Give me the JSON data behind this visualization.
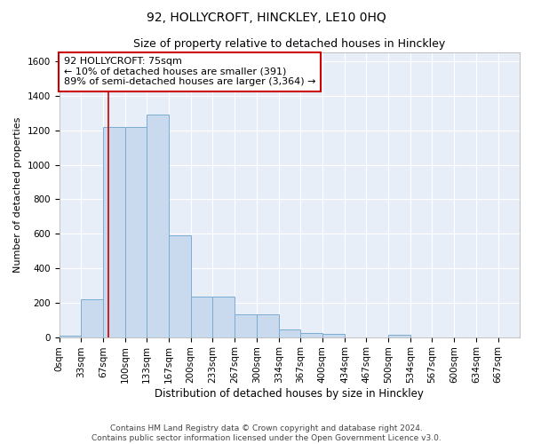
{
  "title1": "92, HOLLYCROFT, HINCKLEY, LE10 0HQ",
  "title2": "Size of property relative to detached houses in Hinckley",
  "xlabel": "Distribution of detached houses by size in Hinckley",
  "ylabel": "Number of detached properties",
  "bin_labels": [
    "0sqm",
    "33sqm",
    "67sqm",
    "100sqm",
    "133sqm",
    "167sqm",
    "200sqm",
    "233sqm",
    "267sqm",
    "300sqm",
    "334sqm",
    "367sqm",
    "400sqm",
    "434sqm",
    "467sqm",
    "500sqm",
    "534sqm",
    "567sqm",
    "600sqm",
    "634sqm",
    "667sqm"
  ],
  "bar_heights": [
    10,
    220,
    1220,
    1220,
    1290,
    590,
    235,
    235,
    130,
    130,
    45,
    25,
    20,
    0,
    0,
    15,
    0,
    0,
    0,
    0,
    0
  ],
  "bar_color": "#c9d9ee",
  "bar_edge_color": "#7aadd4",
  "red_line_x": 75,
  "bin_edges": [
    0,
    33,
    67,
    100,
    133,
    167,
    200,
    233,
    267,
    300,
    334,
    367,
    400,
    434,
    467,
    500,
    534,
    567,
    600,
    634,
    667,
    700
  ],
  "ylim": [
    0,
    1650
  ],
  "yticks": [
    0,
    200,
    400,
    600,
    800,
    1000,
    1200,
    1400,
    1600
  ],
  "annotation_line1": "92 HOLLYCROFT: 75sqm",
  "annotation_line2": "← 10% of detached houses are smaller (391)",
  "annotation_line3": "89% of semi-detached houses are larger (3,364) →",
  "annotation_box_color": "#ffffff",
  "annotation_box_edge_color": "#cc0000",
  "footer1": "Contains HM Land Registry data © Crown copyright and database right 2024.",
  "footer2": "Contains public sector information licensed under the Open Government Licence v3.0.",
  "fig_background_color": "#ffffff",
  "ax_background_color": "#e8eef8",
  "grid_color": "#ffffff",
  "title1_fontsize": 10,
  "title2_fontsize": 9,
  "xlabel_fontsize": 8.5,
  "ylabel_fontsize": 8,
  "tick_fontsize": 7.5,
  "annotation_fontsize": 8,
  "footer_fontsize": 6.5
}
